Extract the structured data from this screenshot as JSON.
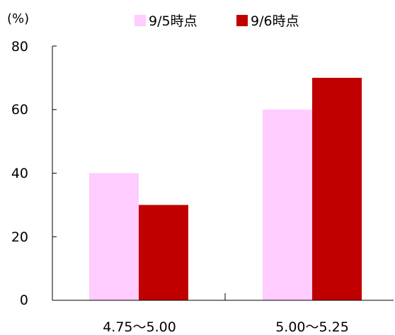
{
  "chart_data": {
    "type": "bar",
    "unit_label": "(%)",
    "categories": [
      "4.75～5.00",
      "5.00～5.25"
    ],
    "series": [
      {
        "name": "9/5時点",
        "values": [
          40,
          60
        ],
        "color": "#ffccff"
      },
      {
        "name": "9/6時点",
        "values": [
          30,
          70
        ],
        "color": "#c00000"
      }
    ],
    "ylim": [
      0,
      80
    ],
    "yticks": [
      "0",
      "20",
      "40",
      "60",
      "80"
    ],
    "ytick_values": [
      0,
      20,
      40,
      60,
      80
    ],
    "grid": false,
    "legend_position": "top"
  }
}
